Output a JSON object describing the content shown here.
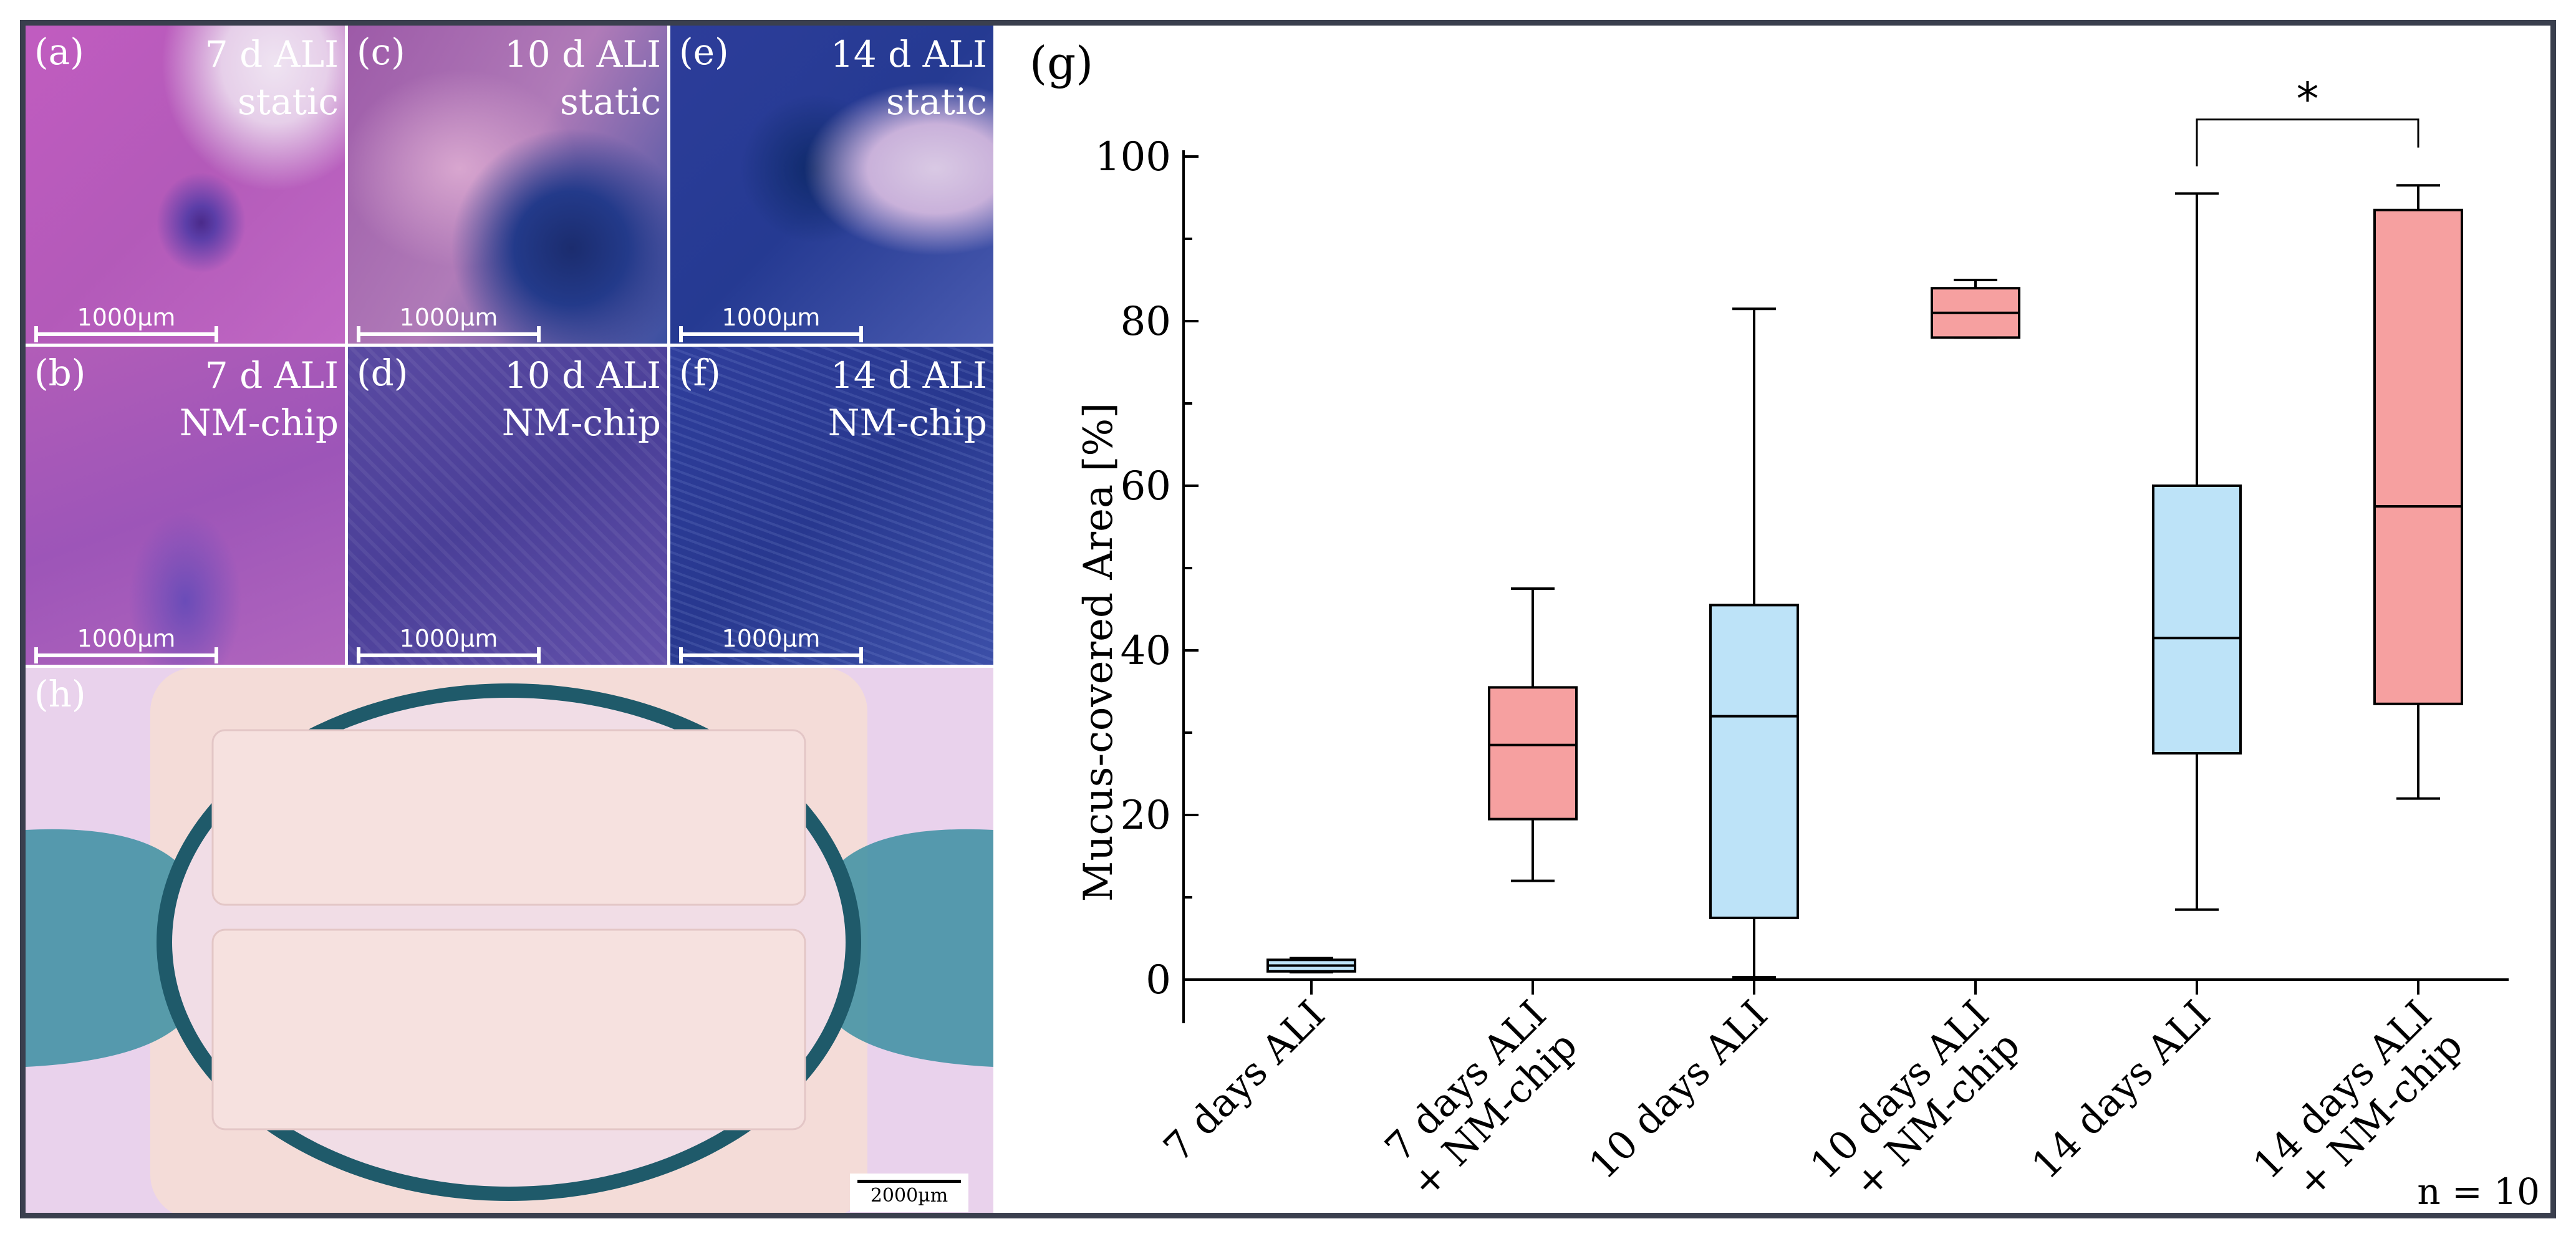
{
  "panels": {
    "a": {
      "label": "(a)",
      "cond1": "7 d ALI",
      "cond2": "static",
      "scale": "1000µm"
    },
    "b": {
      "label": "(b)",
      "cond1": "7 d ALI",
      "cond2": "NM-chip",
      "scale": "1000µm"
    },
    "c": {
      "label": "(c)",
      "cond1": "10 d ALI",
      "cond2": "static",
      "scale": "1000µm"
    },
    "d": {
      "label": "(d)",
      "cond1": "10 d ALI",
      "cond2": "NM-chip",
      "scale": "1000µm"
    },
    "e": {
      "label": "(e)",
      "cond1": "14 d ALI",
      "cond2": "static",
      "scale": "1000µm"
    },
    "f": {
      "label": "(f)",
      "cond1": "14 d ALI",
      "cond2": "NM-chip",
      "scale": "1000µm"
    },
    "h": {
      "label": "(h)",
      "scale": "2000µm"
    }
  },
  "colors": {
    "static": "#bde3f8",
    "chip": "#f6a0a0",
    "frame": "#3a3f4e"
  },
  "chart_data": {
    "type": "box",
    "panel_label": "(g)",
    "ylabel": "Mucus-covered Area [%]",
    "ylim": [
      0,
      100
    ],
    "yticks": [
      "0",
      "20",
      "40",
      "60",
      "80",
      "100"
    ],
    "categories": [
      [
        "7 days ALI"
      ],
      [
        "7 days ALI",
        "+ NM-chip"
      ],
      [
        "10 days ALI"
      ],
      [
        "10 days ALI",
        "+ NM-chip"
      ],
      [
        "14 days ALI"
      ],
      [
        "14 days ALI",
        "+ NM-chip"
      ]
    ],
    "boxes": [
      {
        "min": 0.9,
        "q1": 1.0,
        "median": 1.7,
        "q3": 2.4,
        "max": 2.6,
        "group": "static"
      },
      {
        "min": 12,
        "q1": 19.5,
        "median": 28.5,
        "q3": 35.5,
        "max": 47.5,
        "group": "chip"
      },
      {
        "min": 0.3,
        "q1": 7.5,
        "median": 32,
        "q3": 45.5,
        "max": 81.5,
        "group": "static"
      },
      {
        "min": 78,
        "q1": 78,
        "median": 81,
        "q3": 84,
        "max": 85,
        "group": "chip"
      },
      {
        "min": 8.5,
        "q1": 27.5,
        "median": 41.5,
        "q3": 60,
        "max": 95.5,
        "group": "static"
      },
      {
        "min": 22,
        "q1": 33.5,
        "median": 57.5,
        "q3": 93.5,
        "max": 96.5,
        "group": "chip"
      }
    ],
    "significance": {
      "from": 4,
      "to": 5,
      "label": "*"
    },
    "annotation": "n = 10"
  }
}
